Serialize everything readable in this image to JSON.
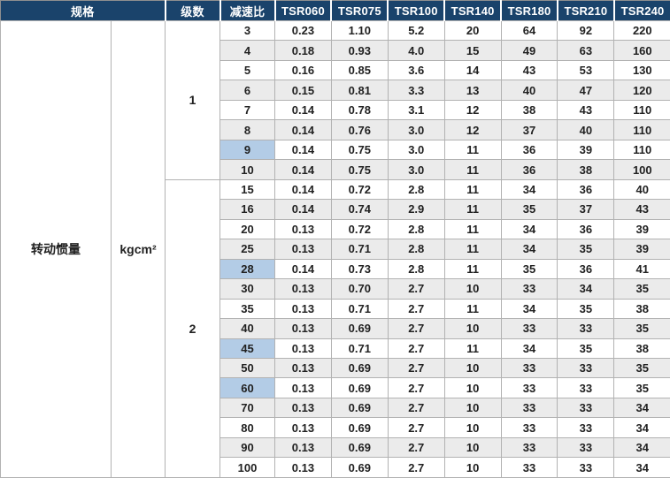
{
  "table": {
    "header": {
      "spec_label": "规格",
      "stages_label": "级数",
      "ratio_label": "减速比",
      "models": [
        "TSR060",
        "TSR075",
        "TSR100",
        "TSR140",
        "TSR180",
        "TSR210",
        "TSR240"
      ]
    },
    "spec": {
      "name": "转动惯量",
      "unit": "kgcm²"
    },
    "groups": [
      {
        "stage": "1",
        "rows": [
          {
            "ratio": "3",
            "highlighted": false,
            "values": [
              "0.23",
              "1.10",
              "5.2",
              "20",
              "64",
              "92",
              "220"
            ]
          },
          {
            "ratio": "4",
            "highlighted": false,
            "values": [
              "0.18",
              "0.93",
              "4.0",
              "15",
              "49",
              "63",
              "160"
            ]
          },
          {
            "ratio": "5",
            "highlighted": false,
            "values": [
              "0.16",
              "0.85",
              "3.6",
              "14",
              "43",
              "53",
              "130"
            ]
          },
          {
            "ratio": "6",
            "highlighted": true,
            "values": [
              "0.15",
              "0.81",
              "3.3",
              "13",
              "40",
              "47",
              "120"
            ]
          },
          {
            "ratio": "7",
            "highlighted": false,
            "values": [
              "0.14",
              "0.78",
              "3.1",
              "12",
              "38",
              "43",
              "110"
            ]
          },
          {
            "ratio": "8",
            "highlighted": false,
            "values": [
              "0.14",
              "0.76",
              "3.0",
              "12",
              "37",
              "40",
              "110"
            ]
          },
          {
            "ratio": "9",
            "highlighted": true,
            "values": [
              "0.14",
              "0.75",
              "3.0",
              "11",
              "36",
              "39",
              "110"
            ]
          },
          {
            "ratio": "10",
            "highlighted": false,
            "values": [
              "0.14",
              "0.75",
              "3.0",
              "11",
              "36",
              "38",
              "100"
            ]
          }
        ]
      },
      {
        "stage": "2",
        "rows": [
          {
            "ratio": "15",
            "highlighted": false,
            "values": [
              "0.14",
              "0.72",
              "2.8",
              "11",
              "34",
              "36",
              "40"
            ]
          },
          {
            "ratio": "16",
            "highlighted": true,
            "values": [
              "0.14",
              "0.74",
              "2.9",
              "11",
              "35",
              "37",
              "43"
            ]
          },
          {
            "ratio": "20",
            "highlighted": false,
            "values": [
              "0.13",
              "0.72",
              "2.8",
              "11",
              "34",
              "36",
              "39"
            ]
          },
          {
            "ratio": "25",
            "highlighted": false,
            "values": [
              "0.13",
              "0.71",
              "2.8",
              "11",
              "34",
              "35",
              "39"
            ]
          },
          {
            "ratio": "28",
            "highlighted": true,
            "values": [
              "0.14",
              "0.73",
              "2.8",
              "11",
              "35",
              "36",
              "41"
            ]
          },
          {
            "ratio": "30",
            "highlighted": false,
            "values": [
              "0.13",
              "0.70",
              "2.7",
              "10",
              "33",
              "34",
              "35"
            ]
          },
          {
            "ratio": "35",
            "highlighted": false,
            "values": [
              "0.13",
              "0.71",
              "2.7",
              "11",
              "34",
              "35",
              "38"
            ]
          },
          {
            "ratio": "40",
            "highlighted": false,
            "values": [
              "0.13",
              "0.69",
              "2.7",
              "10",
              "33",
              "33",
              "35"
            ]
          },
          {
            "ratio": "45",
            "highlighted": true,
            "values": [
              "0.13",
              "0.71",
              "2.7",
              "11",
              "34",
              "35",
              "38"
            ]
          },
          {
            "ratio": "50",
            "highlighted": false,
            "values": [
              "0.13",
              "0.69",
              "2.7",
              "10",
              "33",
              "33",
              "35"
            ]
          },
          {
            "ratio": "60",
            "highlighted": true,
            "values": [
              "0.13",
              "0.69",
              "2.7",
              "10",
              "33",
              "33",
              "35"
            ]
          },
          {
            "ratio": "70",
            "highlighted": false,
            "values": [
              "0.13",
              "0.69",
              "2.7",
              "10",
              "33",
              "33",
              "34"
            ]
          },
          {
            "ratio": "80",
            "highlighted": false,
            "values": [
              "0.13",
              "0.69",
              "2.7",
              "10",
              "33",
              "33",
              "34"
            ]
          },
          {
            "ratio": "90",
            "highlighted": true,
            "values": [
              "0.13",
              "0.69",
              "2.7",
              "10",
              "33",
              "33",
              "34"
            ]
          },
          {
            "ratio": "100",
            "highlighted": false,
            "values": [
              "0.13",
              "0.69",
              "2.7",
              "10",
              "33",
              "33",
              "34"
            ]
          }
        ]
      }
    ],
    "colors": {
      "header_bg": "#1a436b",
      "row_alt": "#ebebeb",
      "ratio_highlight": "#b3cce6",
      "grid_border": "#b2b2b2"
    }
  }
}
